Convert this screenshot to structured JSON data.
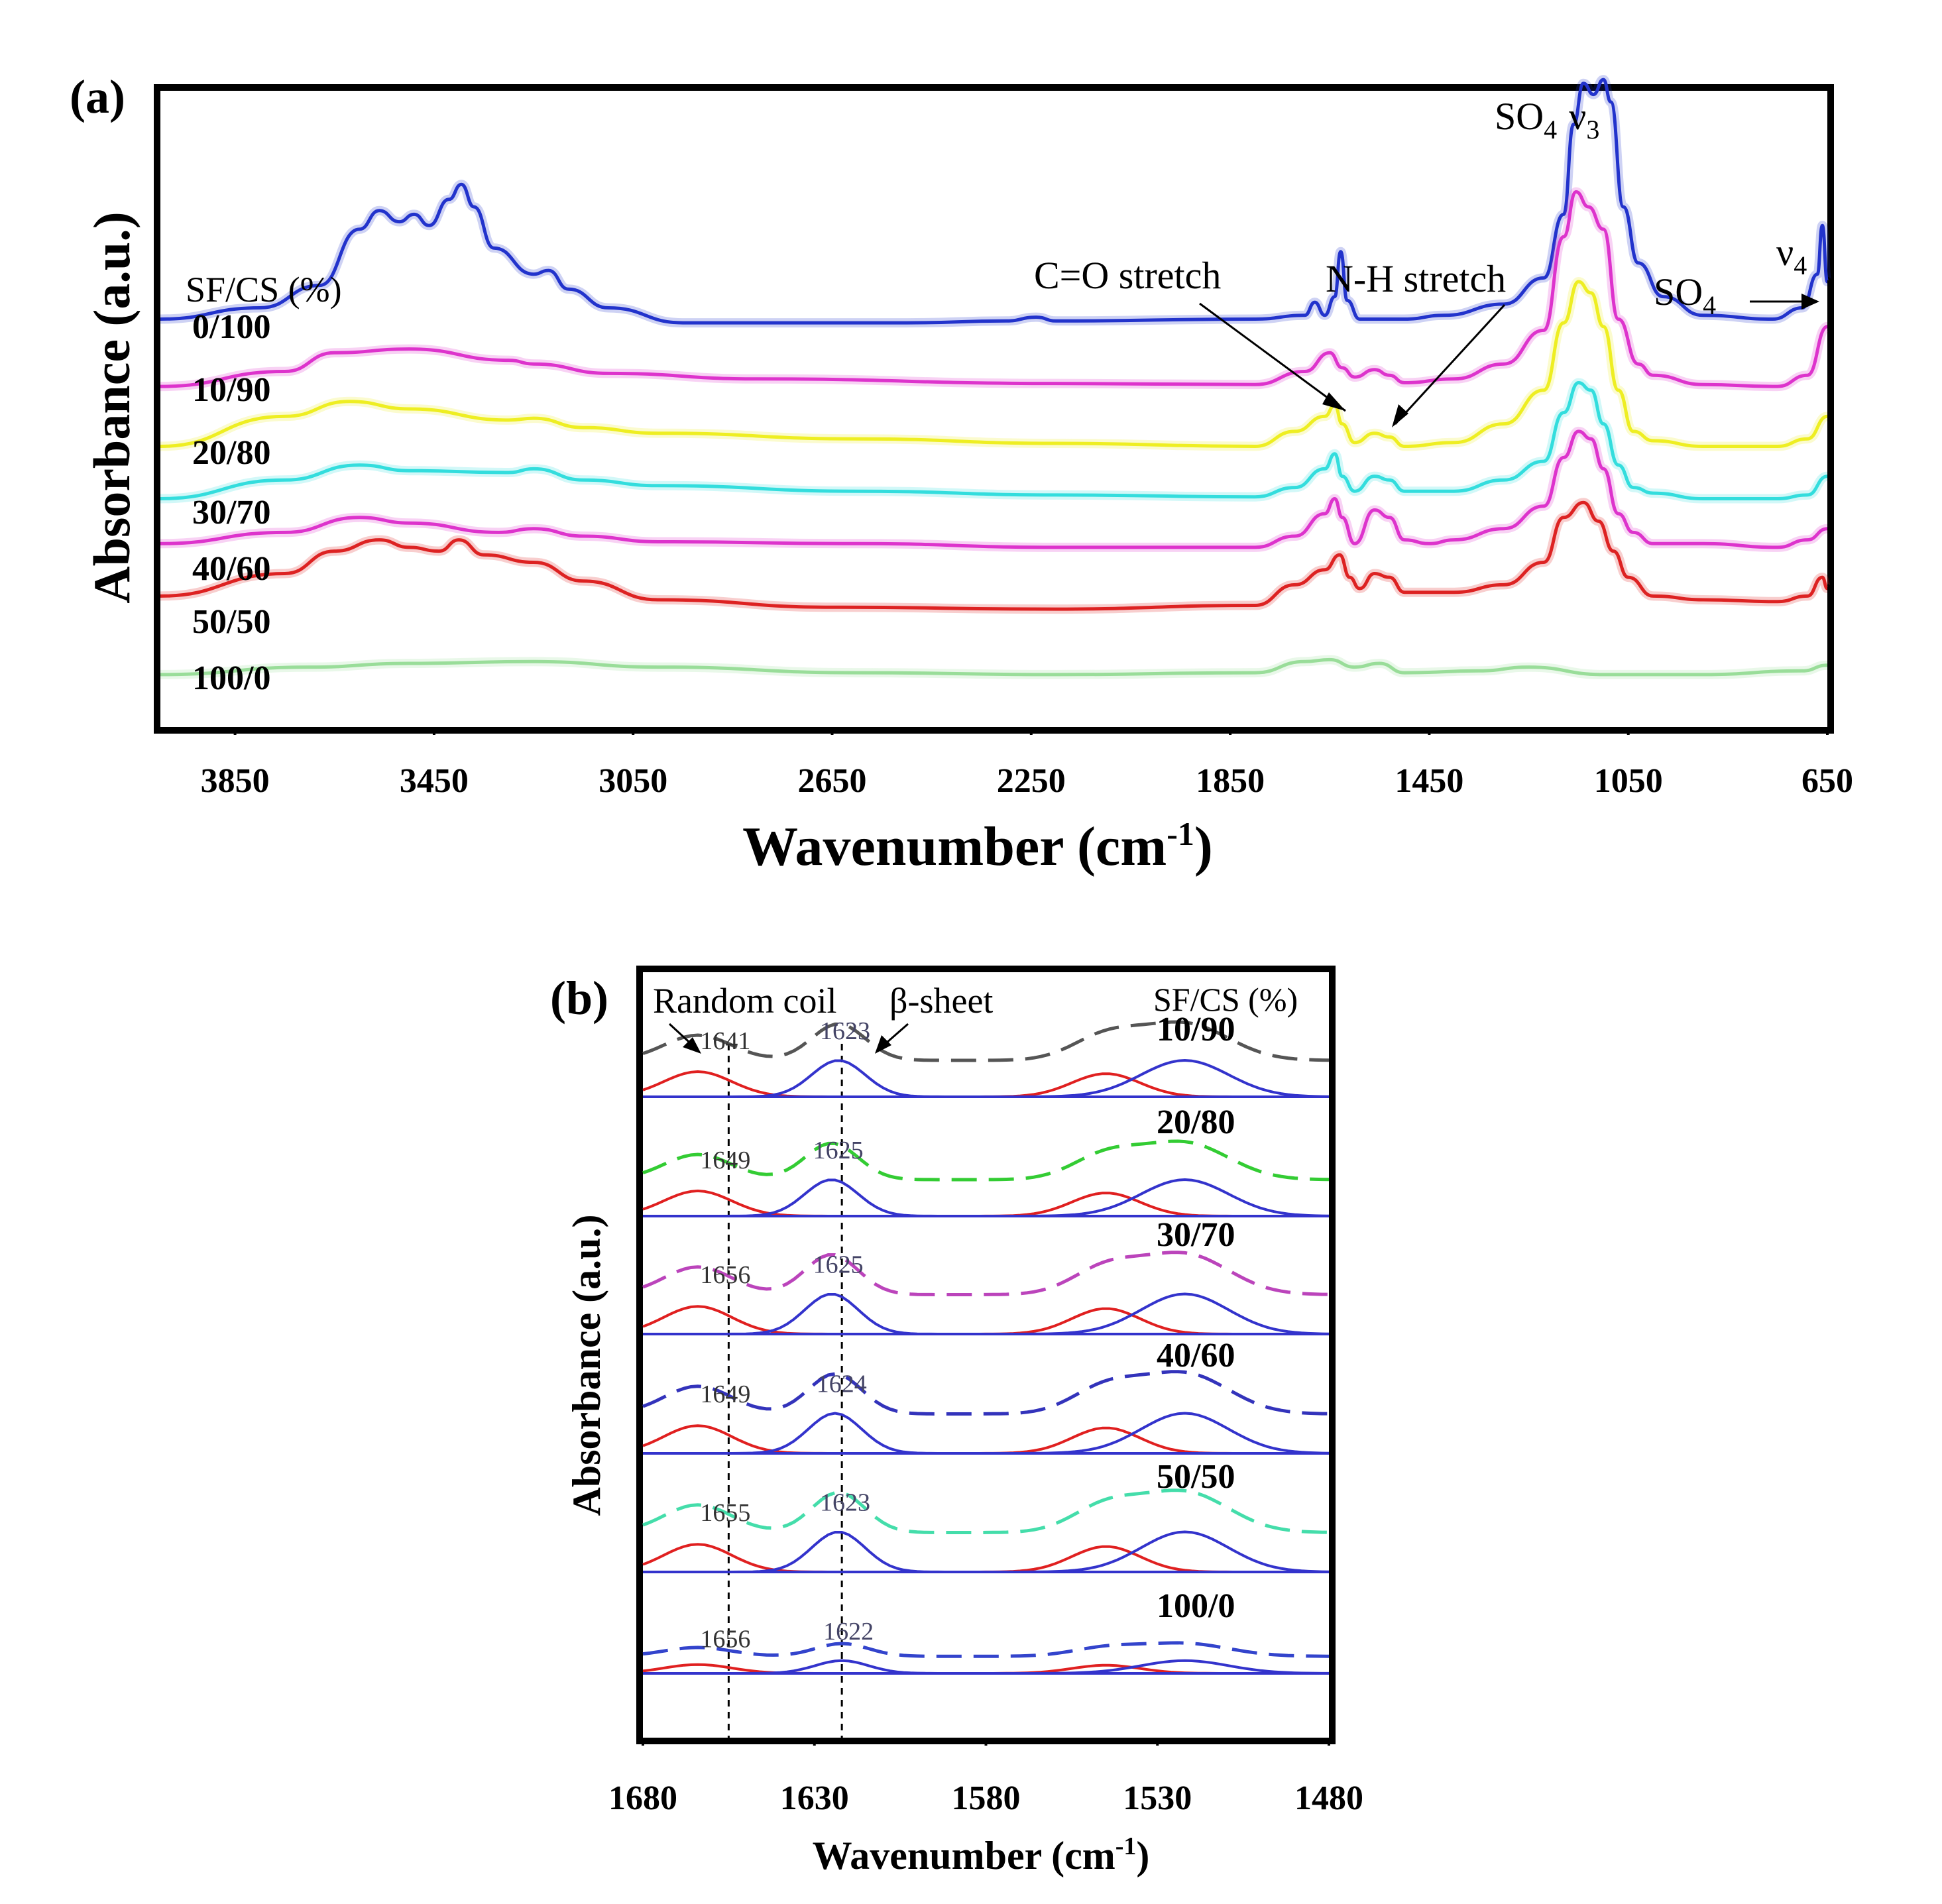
{
  "chart_data": [
    {
      "type": "line",
      "panel_label": "(a)",
      "xlabel_main": "Wavenumber (cm",
      "xlabel_sup": "-1",
      "xlabel_close": ")",
      "ylabel": "Absorbance (a.u.)",
      "xlim": [
        4000,
        650
      ],
      "xticks": [
        3850,
        3450,
        3050,
        2650,
        2250,
        1850,
        1450,
        1050,
        650
      ],
      "legend_title": "SF/CS (%)",
      "annotations": {
        "co_stretch": "C=O stretch",
        "nh_stretch": "N-H stretch",
        "so4_main": "SO",
        "so4_sub": "4",
        "nu3_main": "ν",
        "nu3_sub": "3",
        "so4b_main": "SO",
        "so4b_sub": "4",
        "nu4_main": "ν",
        "nu4_sub": "4"
      },
      "series": [
        {
          "name": "0/100",
          "color": "#2233cc",
          "offset": 10.9,
          "points": [
            [
              4000,
              0.0
            ],
            [
              3800,
              0.3
            ],
            [
              3680,
              0.9
            ],
            [
              3600,
              2.4
            ],
            [
              3560,
              2.9
            ],
            [
              3520,
              2.6
            ],
            [
              3490,
              2.8
            ],
            [
              3460,
              2.5
            ],
            [
              3420,
              3.2
            ],
            [
              3395,
              3.6
            ],
            [
              3370,
              3.0
            ],
            [
              3330,
              1.9
            ],
            [
              3250,
              1.2
            ],
            [
              3220,
              1.3
            ],
            [
              3180,
              0.8
            ],
            [
              3100,
              0.3
            ],
            [
              2950,
              -0.1
            ],
            [
              2500,
              -0.1
            ],
            [
              2300,
              -0.05
            ],
            [
              2240,
              0.05
            ],
            [
              2200,
              -0.05
            ],
            [
              1800,
              0.0
            ],
            [
              1700,
              0.1
            ],
            [
              1680,
              0.45
            ],
            [
              1660,
              0.1
            ],
            [
              1640,
              0.6
            ],
            [
              1628,
              1.8
            ],
            [
              1615,
              0.5
            ],
            [
              1590,
              0.0
            ],
            [
              1500,
              0.0
            ],
            [
              1420,
              0.1
            ],
            [
              1300,
              0.4
            ],
            [
              1220,
              1.1
            ],
            [
              1180,
              2.8
            ],
            [
              1160,
              5.2
            ],
            [
              1140,
              6.3
            ],
            [
              1120,
              6.0
            ],
            [
              1100,
              6.4
            ],
            [
              1085,
              5.8
            ],
            [
              1060,
              3.0
            ],
            [
              1030,
              1.5
            ],
            [
              980,
              0.6
            ],
            [
              900,
              0.1
            ],
            [
              760,
              0.0
            ],
            [
              700,
              0.3
            ],
            [
              670,
              1.2
            ],
            [
              660,
              2.5
            ],
            [
              650,
              1.0
            ]
          ]
        },
        {
          "name": "10/90",
          "color": "#dd33cc",
          "offset": 9.1,
          "points": [
            [
              4000,
              0.0
            ],
            [
              3750,
              0.4
            ],
            [
              3650,
              0.9
            ],
            [
              3500,
              1.0
            ],
            [
              3300,
              0.7
            ],
            [
              3250,
              0.6
            ],
            [
              3100,
              0.35
            ],
            [
              2800,
              0.2
            ],
            [
              2200,
              0.08
            ],
            [
              1800,
              0.05
            ],
            [
              1700,
              0.4
            ],
            [
              1650,
              0.9
            ],
            [
              1625,
              0.5
            ],
            [
              1600,
              0.25
            ],
            [
              1560,
              0.45
            ],
            [
              1530,
              0.3
            ],
            [
              1500,
              0.1
            ],
            [
              1400,
              0.2
            ],
            [
              1300,
              0.6
            ],
            [
              1220,
              1.5
            ],
            [
              1180,
              4.0
            ],
            [
              1155,
              5.2
            ],
            [
              1130,
              4.8
            ],
            [
              1100,
              4.2
            ],
            [
              1070,
              1.8
            ],
            [
              1030,
              0.6
            ],
            [
              1000,
              0.3
            ],
            [
              900,
              0.05
            ],
            [
              750,
              0.0
            ],
            [
              690,
              0.3
            ],
            [
              650,
              1.6
            ]
          ]
        },
        {
          "name": "20/80",
          "color": "#eeee22",
          "offset": 7.5,
          "points": [
            [
              4000,
              0.0
            ],
            [
              3750,
              0.8
            ],
            [
              3620,
              1.2
            ],
            [
              3500,
              1.0
            ],
            [
              3300,
              0.7
            ],
            [
              3250,
              0.75
            ],
            [
              3150,
              0.5
            ],
            [
              3000,
              0.35
            ],
            [
              2600,
              0.2
            ],
            [
              2200,
              0.08
            ],
            [
              1800,
              0.0
            ],
            [
              1720,
              0.4
            ],
            [
              1660,
              0.8
            ],
            [
              1640,
              1.1
            ],
            [
              1625,
              0.6
            ],
            [
              1600,
              0.1
            ],
            [
              1560,
              0.35
            ],
            [
              1530,
              0.25
            ],
            [
              1500,
              0.0
            ],
            [
              1400,
              0.1
            ],
            [
              1300,
              0.6
            ],
            [
              1220,
              1.5
            ],
            [
              1180,
              3.3
            ],
            [
              1150,
              4.4
            ],
            [
              1125,
              4.1
            ],
            [
              1100,
              3.2
            ],
            [
              1070,
              1.5
            ],
            [
              1040,
              0.4
            ],
            [
              1000,
              0.15
            ],
            [
              900,
              0.0
            ],
            [
              750,
              0.0
            ],
            [
              690,
              0.2
            ],
            [
              650,
              0.8
            ]
          ]
        },
        {
          "name": "30/70",
          "color": "#33dddd",
          "offset": 6.1,
          "points": [
            [
              4000,
              0.0
            ],
            [
              3750,
              0.5
            ],
            [
              3600,
              0.9
            ],
            [
              3500,
              0.75
            ],
            [
              3300,
              0.7
            ],
            [
              3250,
              0.8
            ],
            [
              3150,
              0.5
            ],
            [
              3000,
              0.35
            ],
            [
              2600,
              0.2
            ],
            [
              2200,
              0.1
            ],
            [
              1800,
              0.05
            ],
            [
              1720,
              0.3
            ],
            [
              1660,
              0.8
            ],
            [
              1640,
              1.2
            ],
            [
              1625,
              0.6
            ],
            [
              1600,
              0.2
            ],
            [
              1560,
              0.6
            ],
            [
              1530,
              0.5
            ],
            [
              1500,
              0.2
            ],
            [
              1400,
              0.2
            ],
            [
              1300,
              0.5
            ],
            [
              1220,
              1.0
            ],
            [
              1180,
              2.3
            ],
            [
              1150,
              3.1
            ],
            [
              1125,
              2.9
            ],
            [
              1100,
              2.0
            ],
            [
              1070,
              0.9
            ],
            [
              1040,
              0.3
            ],
            [
              1000,
              0.15
            ],
            [
              900,
              0.0
            ],
            [
              750,
              0.0
            ],
            [
              690,
              0.1
            ],
            [
              650,
              0.6
            ]
          ]
        },
        {
          "name": "40/60",
          "color": "#dd33cc",
          "offset": 4.9,
          "points": [
            [
              4000,
              0.0
            ],
            [
              3750,
              0.3
            ],
            [
              3600,
              0.7
            ],
            [
              3500,
              0.55
            ],
            [
              3320,
              0.3
            ],
            [
              3250,
              0.4
            ],
            [
              3150,
              0.2
            ],
            [
              3000,
              0.05
            ],
            [
              2600,
              0.0
            ],
            [
              2200,
              -0.1
            ],
            [
              1800,
              -0.1
            ],
            [
              1720,
              0.2
            ],
            [
              1660,
              0.8
            ],
            [
              1640,
              1.2
            ],
            [
              1625,
              0.7
            ],
            [
              1600,
              0.0
            ],
            [
              1560,
              0.9
            ],
            [
              1530,
              0.7
            ],
            [
              1500,
              0.1
            ],
            [
              1450,
              0.0
            ],
            [
              1400,
              0.1
            ],
            [
              1300,
              0.4
            ],
            [
              1220,
              1.0
            ],
            [
              1180,
              2.3
            ],
            [
              1150,
              3.0
            ],
            [
              1125,
              2.8
            ],
            [
              1100,
              2.0
            ],
            [
              1070,
              0.8
            ],
            [
              1040,
              0.3
            ],
            [
              1000,
              0.0
            ],
            [
              900,
              0.0
            ],
            [
              750,
              -0.1
            ],
            [
              690,
              0.1
            ],
            [
              650,
              0.4
            ]
          ]
        },
        {
          "name": "50/50",
          "color": "#dd2222",
          "offset": 3.5,
          "points": [
            [
              4000,
              0.0
            ],
            [
              3750,
              0.6
            ],
            [
              3650,
              1.2
            ],
            [
              3560,
              1.5
            ],
            [
              3500,
              1.3
            ],
            [
              3440,
              1.2
            ],
            [
              3400,
              1.5
            ],
            [
              3350,
              1.1
            ],
            [
              3250,
              0.9
            ],
            [
              3150,
              0.4
            ],
            [
              3000,
              -0.1
            ],
            [
              2650,
              -0.3
            ],
            [
              2200,
              -0.35
            ],
            [
              1800,
              -0.25
            ],
            [
              1720,
              0.3
            ],
            [
              1660,
              0.7
            ],
            [
              1630,
              1.1
            ],
            [
              1610,
              0.5
            ],
            [
              1590,
              0.2
            ],
            [
              1560,
              0.6
            ],
            [
              1530,
              0.5
            ],
            [
              1500,
              0.1
            ],
            [
              1400,
              0.1
            ],
            [
              1300,
              0.3
            ],
            [
              1220,
              0.9
            ],
            [
              1180,
              2.1
            ],
            [
              1140,
              2.5
            ],
            [
              1110,
              2.0
            ],
            [
              1080,
              1.2
            ],
            [
              1050,
              0.5
            ],
            [
              1000,
              0.0
            ],
            [
              900,
              -0.1
            ],
            [
              750,
              -0.15
            ],
            [
              690,
              0.0
            ],
            [
              660,
              0.5
            ],
            [
              650,
              0.2
            ]
          ]
        },
        {
          "name": "100/0",
          "color": "#99dd99",
          "offset": 1.4,
          "points": [
            [
              4000,
              0.0
            ],
            [
              3700,
              0.2
            ],
            [
              3500,
              0.3
            ],
            [
              3250,
              0.35
            ],
            [
              3000,
              0.2
            ],
            [
              2600,
              0.05
            ],
            [
              2200,
              0.0
            ],
            [
              1800,
              0.05
            ],
            [
              1700,
              0.35
            ],
            [
              1650,
              0.4
            ],
            [
              1600,
              0.2
            ],
            [
              1550,
              0.3
            ],
            [
              1500,
              0.05
            ],
            [
              1350,
              0.1
            ],
            [
              1250,
              0.2
            ],
            [
              1100,
              0.0
            ],
            [
              900,
              0.0
            ],
            [
              700,
              0.1
            ],
            [
              650,
              0.25
            ]
          ]
        }
      ],
      "ylim": [
        0,
        17
      ]
    },
    {
      "type": "line",
      "panel_label": "(b)",
      "xlabel_main": "Wavenumber  (cm",
      "xlabel_sup": "-1",
      "xlabel_close": ")",
      "ylabel": "Absorbance  (a.u.)",
      "xlim": [
        1680,
        1480
      ],
      "xticks": [
        1680,
        1630,
        1580,
        1530,
        1480
      ],
      "legend_title": "SF/CS (%)",
      "annotations": {
        "random_coil": "Random coil",
        "beta_sheet": "β-sheet"
      },
      "dashed_guides_x": [
        1655,
        1622
      ],
      "series": [
        {
          "name": "10/90",
          "color": "#555555",
          "random_coil_peak": "1641",
          "beta_sheet_peak": "1623"
        },
        {
          "name": "20/80",
          "color": "#33cc33",
          "random_coil_peak": "1649",
          "beta_sheet_peak": "1625"
        },
        {
          "name": "30/70",
          "color": "#bb44bb",
          "random_coil_peak": "1656",
          "beta_sheet_peak": "1625"
        },
        {
          "name": "40/60",
          "color": "#3333bb",
          "random_coil_peak": "1649",
          "beta_sheet_peak": "1624"
        },
        {
          "name": "50/50",
          "color": "#44ddaa",
          "random_coil_peak": "1655",
          "beta_sheet_peak": "1623"
        },
        {
          "name": "100/0",
          "color": "#3344cc",
          "random_coil_peak": "1656",
          "beta_sheet_peak": "1622"
        }
      ]
    }
  ]
}
